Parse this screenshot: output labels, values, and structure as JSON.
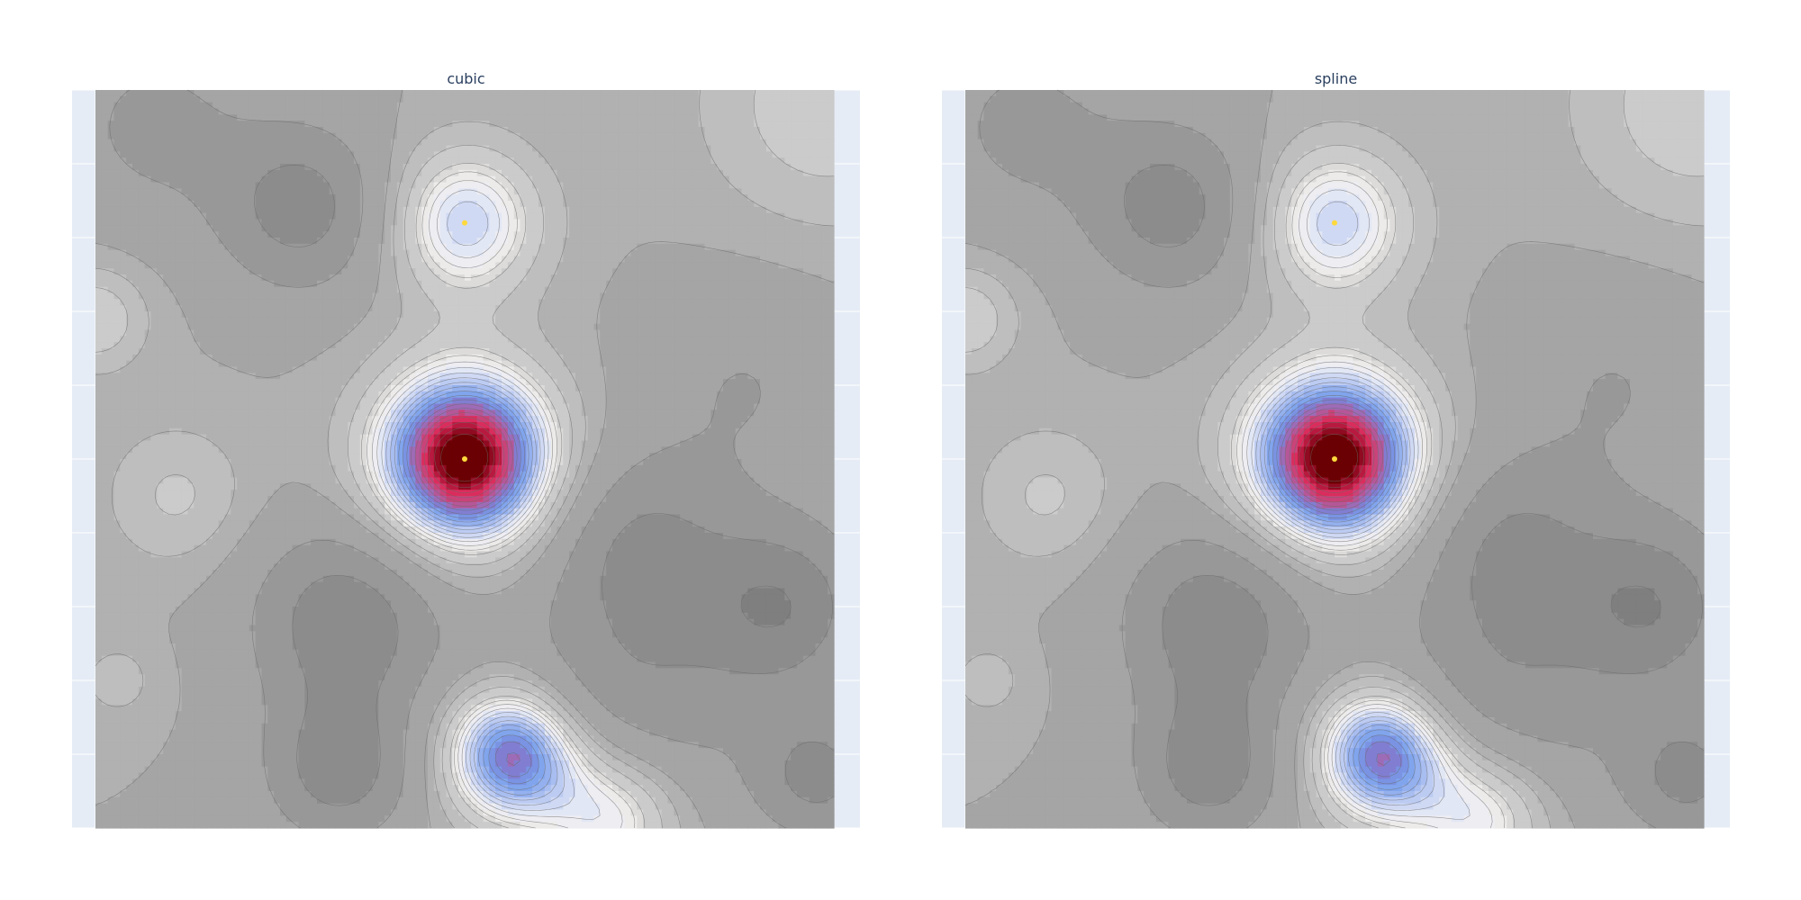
{
  "chart_data": [
    {
      "type": "contour",
      "title": "cubic",
      "xlabel": "",
      "ylabel": "",
      "x_range": [
        0,
        1
      ],
      "y_range": [
        0,
        1
      ],
      "grid": true,
      "show_tick_labels": false,
      "legend": "none",
      "sample_points": [
        {
          "x": 0.5,
          "y": 0.5
        },
        {
          "x": 0.5,
          "y": 0.82
        }
      ],
      "peaks": [
        {
          "x": 0.5,
          "y": 0.5,
          "amplitude": 1.25,
          "sigma": 0.085
        },
        {
          "x": 0.5,
          "y": 0.82,
          "amplitude": 0.55,
          "sigma": 0.075
        },
        {
          "x": 0.565,
          "y": 0.1,
          "amplitude": 0.95,
          "sigma": 0.065
        },
        {
          "x": 0.7,
          "y": 0.02,
          "amplitude": 0.55,
          "sigma": 0.07
        },
        {
          "x": 0.0,
          "y": 0.69,
          "amplitude": 0.3,
          "sigma": 0.05
        },
        {
          "x": 0.11,
          "y": 0.45,
          "amplitude": 0.22,
          "sigma": 0.07
        },
        {
          "x": 0.99,
          "y": 0.98,
          "amplitude": 0.28,
          "sigma": 0.12
        },
        {
          "x": 0.03,
          "y": 0.2,
          "amplitude": 0.15,
          "sigma": 0.04
        },
        {
          "x": 0.28,
          "y": 0.84,
          "amplitude": -0.5,
          "sigma": 0.08
        },
        {
          "x": 0.74,
          "y": 0.38,
          "amplitude": -0.4,
          "sigma": 0.09
        },
        {
          "x": 0.72,
          "y": 0.16,
          "amplitude": -0.35,
          "sigma": 0.12
        },
        {
          "x": 0.93,
          "y": 0.3,
          "amplitude": -0.55,
          "sigma": 0.08
        },
        {
          "x": 0.34,
          "y": 0.28,
          "amplitude": -0.55,
          "sigma": 0.09
        },
        {
          "x": 0.33,
          "y": 0.08,
          "amplitude": -0.5,
          "sigma": 0.07
        },
        {
          "x": 0.98,
          "y": 0.07,
          "amplitude": -0.45,
          "sigma": 0.06
        },
        {
          "x": 0.88,
          "y": 0.6,
          "amplitude": -0.2,
          "sigma": 0.1
        },
        {
          "x": 0.08,
          "y": 0.95,
          "amplitude": -0.25,
          "sigma": 0.09
        }
      ],
      "levels": [
        -0.6,
        -0.4,
        -0.2,
        0.0,
        0.1,
        0.2,
        0.3,
        0.35,
        0.4,
        0.45,
        0.5,
        0.55,
        0.6,
        0.65,
        0.7,
        0.75,
        0.8,
        0.85,
        0.9,
        0.95,
        1.0,
        1.05,
        1.1,
        1.15
      ],
      "colorscale": [
        [
          0.0,
          "#7f7f7f"
        ],
        [
          0.12,
          "#a3a3a3"
        ],
        [
          0.25,
          "#cbcbcb"
        ],
        [
          0.35,
          "#f3f1f0"
        ],
        [
          0.42,
          "#e1e6f5"
        ],
        [
          0.5,
          "#bccbf2"
        ],
        [
          0.57,
          "#9ab4ef"
        ],
        [
          0.64,
          "#7aa1ec"
        ],
        [
          0.7,
          "#7b82d8"
        ],
        [
          0.76,
          "#a566b0"
        ],
        [
          0.82,
          "#c44a82"
        ],
        [
          0.88,
          "#dc2a5a"
        ],
        [
          0.94,
          "#a1102e"
        ],
        [
          1.0,
          "#6a0003"
        ]
      ]
    },
    {
      "type": "contour",
      "title": "spline",
      "xlabel": "",
      "ylabel": "",
      "x_range": [
        0,
        1
      ],
      "y_range": [
        0,
        1
      ],
      "grid": true,
      "show_tick_labels": false,
      "legend": "none",
      "sample_points": [
        {
          "x": 0.5,
          "y": 0.5
        },
        {
          "x": 0.5,
          "y": 0.82
        }
      ],
      "peaks": [
        {
          "x": 0.5,
          "y": 0.5,
          "amplitude": 1.25,
          "sigma": 0.085
        },
        {
          "x": 0.5,
          "y": 0.82,
          "amplitude": 0.55,
          "sigma": 0.075
        },
        {
          "x": 0.565,
          "y": 0.1,
          "amplitude": 0.95,
          "sigma": 0.065
        },
        {
          "x": 0.7,
          "y": 0.02,
          "amplitude": 0.55,
          "sigma": 0.07
        },
        {
          "x": 0.0,
          "y": 0.69,
          "amplitude": 0.3,
          "sigma": 0.05
        },
        {
          "x": 0.11,
          "y": 0.45,
          "amplitude": 0.22,
          "sigma": 0.07
        },
        {
          "x": 0.99,
          "y": 0.98,
          "amplitude": 0.28,
          "sigma": 0.12
        },
        {
          "x": 0.03,
          "y": 0.2,
          "amplitude": 0.15,
          "sigma": 0.04
        },
        {
          "x": 0.28,
          "y": 0.84,
          "amplitude": -0.5,
          "sigma": 0.08
        },
        {
          "x": 0.74,
          "y": 0.38,
          "amplitude": -0.4,
          "sigma": 0.09
        },
        {
          "x": 0.72,
          "y": 0.16,
          "amplitude": -0.35,
          "sigma": 0.12
        },
        {
          "x": 0.93,
          "y": 0.3,
          "amplitude": -0.55,
          "sigma": 0.08
        },
        {
          "x": 0.34,
          "y": 0.28,
          "amplitude": -0.55,
          "sigma": 0.09
        },
        {
          "x": 0.33,
          "y": 0.08,
          "amplitude": -0.5,
          "sigma": 0.07
        },
        {
          "x": 0.98,
          "y": 0.07,
          "amplitude": -0.45,
          "sigma": 0.06
        },
        {
          "x": 0.88,
          "y": 0.6,
          "amplitude": -0.2,
          "sigma": 0.1
        },
        {
          "x": 0.08,
          "y": 0.95,
          "amplitude": -0.25,
          "sigma": 0.09
        }
      ],
      "levels": [
        -0.6,
        -0.4,
        -0.2,
        0.0,
        0.1,
        0.2,
        0.3,
        0.35,
        0.4,
        0.45,
        0.5,
        0.55,
        0.6,
        0.65,
        0.7,
        0.75,
        0.8,
        0.85,
        0.9,
        0.95,
        1.0,
        1.05,
        1.1,
        1.15
      ],
      "colorscale": [
        [
          0.0,
          "#7f7f7f"
        ],
        [
          0.12,
          "#a3a3a3"
        ],
        [
          0.25,
          "#cbcbcb"
        ],
        [
          0.35,
          "#f3f1f0"
        ],
        [
          0.42,
          "#e1e6f5"
        ],
        [
          0.5,
          "#bccbf2"
        ],
        [
          0.57,
          "#9ab4ef"
        ],
        [
          0.64,
          "#7aa1ec"
        ],
        [
          0.7,
          "#7b82d8"
        ],
        [
          0.76,
          "#a566b0"
        ],
        [
          0.82,
          "#c44a82"
        ],
        [
          0.88,
          "#dc2a5a"
        ],
        [
          0.94,
          "#a1102e"
        ],
        [
          1.0,
          "#6a0003"
        ]
      ]
    }
  ],
  "style": {
    "plot_bg": "#e5ecf6",
    "gridline": "#ffffff",
    "contour_line": "#6b6b6b",
    "marker_color": "#ffd93d",
    "title_color": "#2a3f5f"
  }
}
